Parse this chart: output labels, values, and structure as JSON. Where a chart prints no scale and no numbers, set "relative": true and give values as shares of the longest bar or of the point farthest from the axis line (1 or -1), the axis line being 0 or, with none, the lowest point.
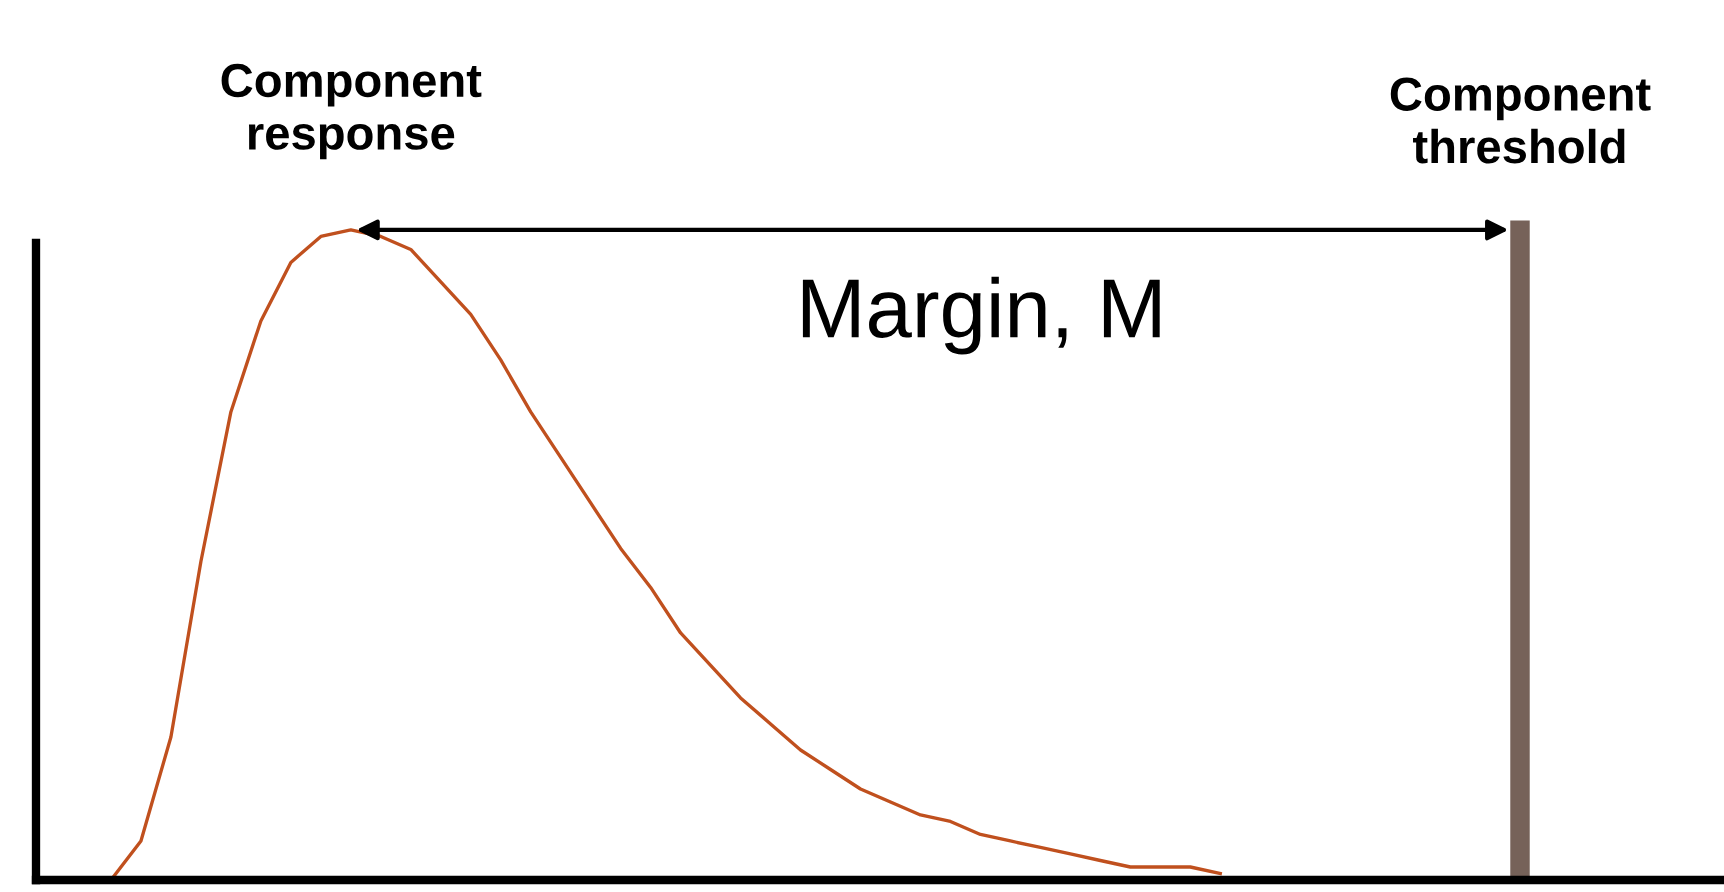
{
  "chart_data": {
    "type": "line",
    "relative": true,
    "categories": [
      null,
      null,
      null,
      null,
      null,
      null,
      null,
      null,
      null,
      null,
      null,
      null,
      null,
      null,
      null,
      null,
      null,
      null,
      null,
      null,
      null,
      null,
      null,
      null,
      null,
      null,
      null,
      null,
      null,
      null,
      null,
      null,
      null,
      null,
      null,
      null,
      null,
      null,
      null,
      null,
      null,
      null,
      null,
      null,
      null,
      null,
      null,
      null,
      null,
      null,
      null
    ],
    "series": [
      {
        "name": "Component response",
        "color": "#c0501e",
        "values": [
          null,
          0,
          0.06,
          0.22,
          0.49,
          0.72,
          0.86,
          0.95,
          0.99,
          1,
          0.99,
          0.97,
          0.92,
          0.87,
          0.8,
          0.72,
          0.65,
          0.58,
          0.51,
          0.45,
          0.38,
          0.33,
          0.28,
          0.24,
          0.2,
          0.17,
          0.14,
          0.12,
          0.1,
          0.09,
          0.07,
          0.06,
          0.05,
          0.04,
          0.03,
          0.02,
          0.02,
          0.02,
          0.01,
          null,
          null,
          null,
          null,
          null,
          null,
          null,
          null,
          null,
          null,
          null,
          null
        ]
      }
    ],
    "annotations": [
      "Component threshold",
      "Margin, M"
    ],
    "legend": false,
    "marker": "none",
    "line_style": "solid"
  }
}
